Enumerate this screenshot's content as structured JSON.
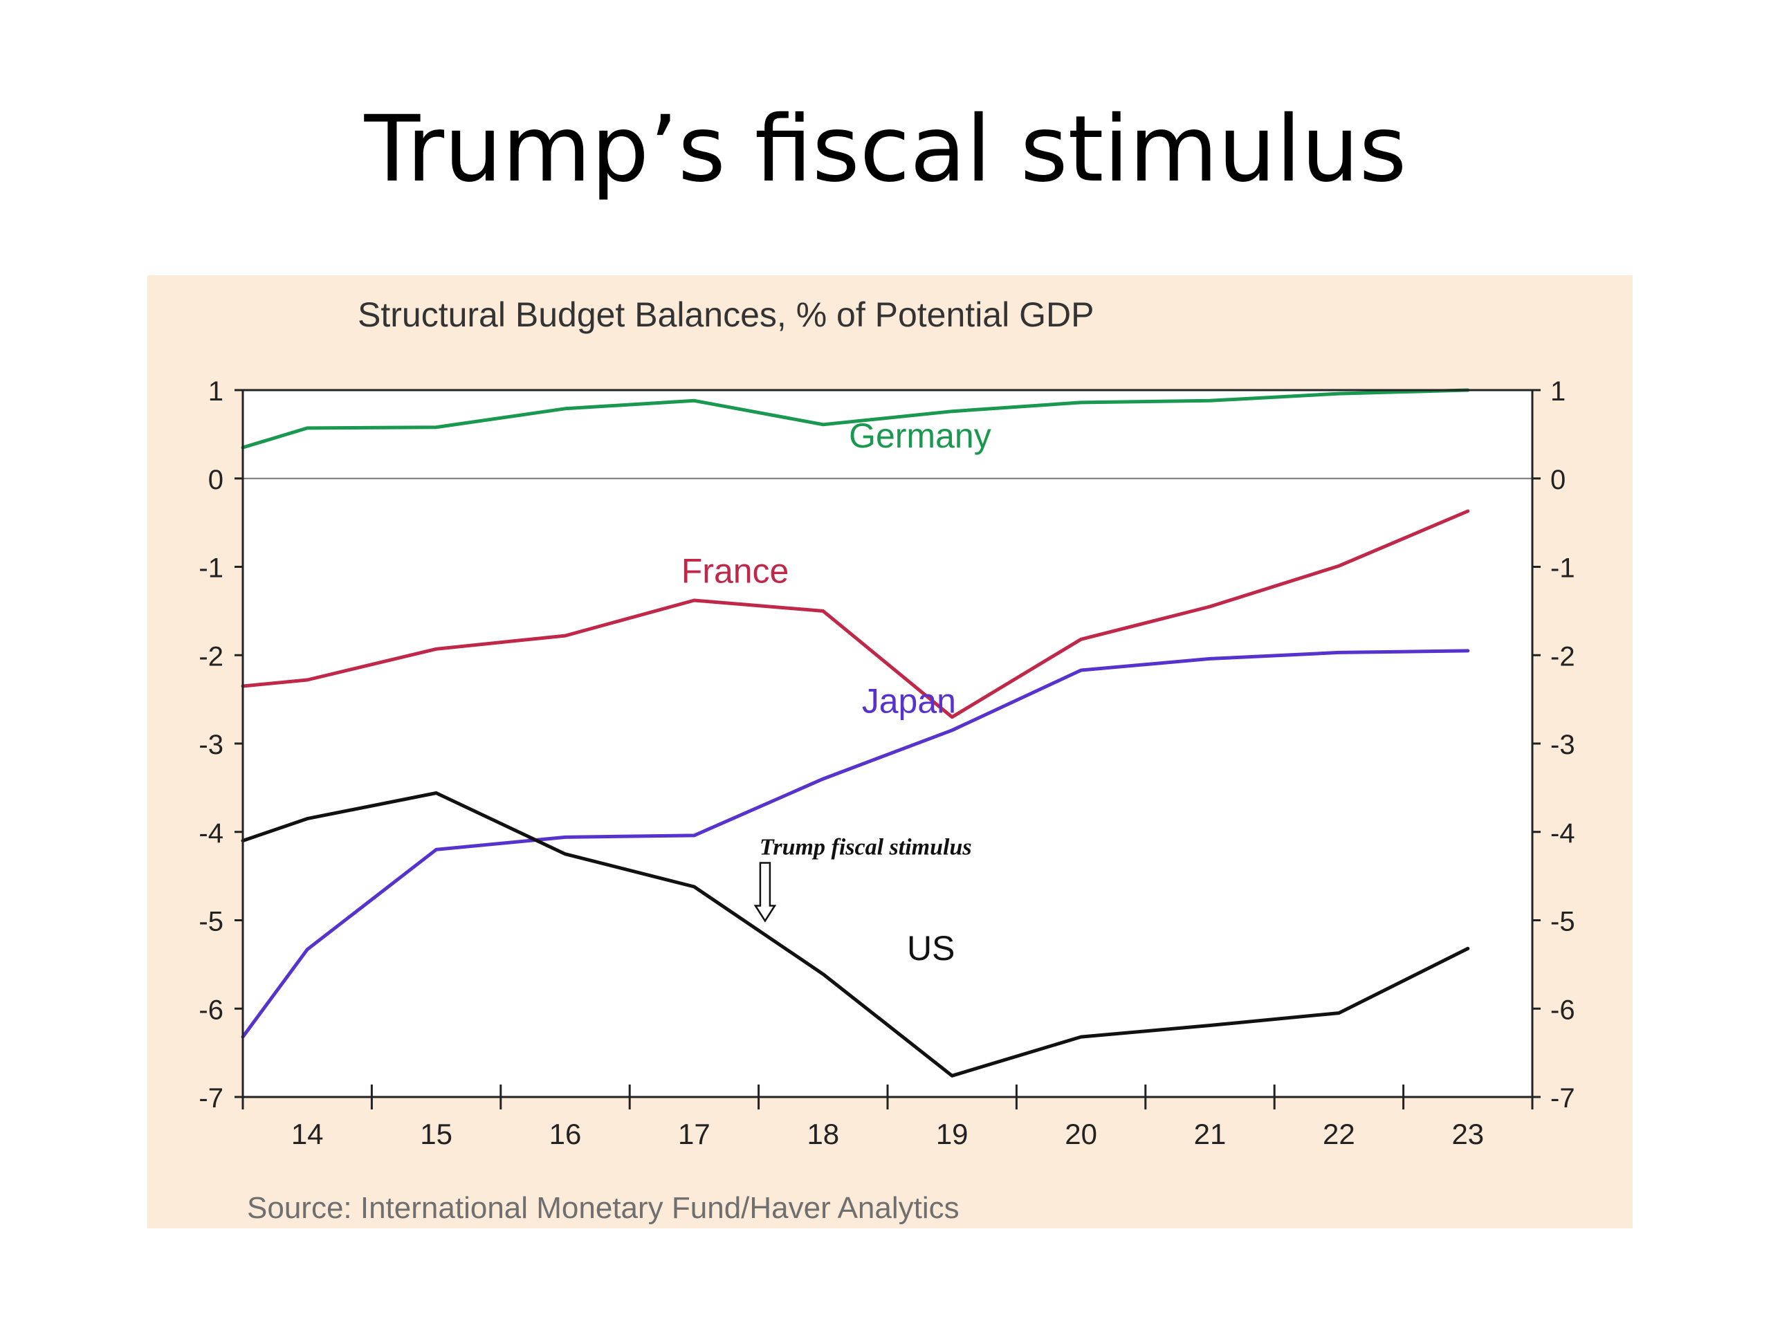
{
  "slide": {
    "title": "Trump’s fiscal stimulus"
  },
  "chart_data": {
    "type": "line",
    "title": "Structural Budget Balances, % of Potential GDP",
    "source": "Source:  International Monetary Fund/Haver Analytics",
    "x": [
      "14",
      "15",
      "16",
      "17",
      "18",
      "19",
      "20",
      "21",
      "22",
      "23"
    ],
    "x_first_value": 13.5,
    "xlim": [
      13.5,
      23.5
    ],
    "ylim": [
      -7,
      1
    ],
    "yticks": [
      1,
      0,
      -1,
      -2,
      -3,
      -4,
      -5,
      -6,
      -7
    ],
    "ytick_labels": [
      "1",
      "0",
      "-1",
      "-2",
      "-3",
      "-4",
      "-5",
      "-6",
      "-7"
    ],
    "right_axis": true,
    "grid": false,
    "zero_line": true,
    "series": [
      {
        "name": "Germany",
        "color": "#1a9850",
        "x": [
          13.5,
          14,
          15,
          16,
          17,
          18,
          19,
          20,
          21,
          22,
          23
        ],
        "values": [
          0.35,
          0.57,
          0.58,
          0.79,
          0.88,
          0.61,
          0.76,
          0.86,
          0.88,
          0.96,
          1.0
        ]
      },
      {
        "name": "France",
        "color": "#c0284a",
        "x": [
          13.5,
          14,
          15,
          16,
          17,
          18,
          19,
          20,
          21,
          22,
          23
        ],
        "values": [
          -2.35,
          -2.28,
          -1.93,
          -1.78,
          -1.38,
          -1.5,
          -2.7,
          -1.82,
          -1.45,
          -0.99,
          -0.37
        ]
      },
      {
        "name": "Japan",
        "color": "#5533cc",
        "x": [
          13.5,
          14,
          15,
          16,
          17,
          18,
          19,
          20,
          21,
          22,
          23
        ],
        "values": [
          -6.32,
          -5.33,
          -4.2,
          -4.06,
          -4.04,
          -3.4,
          -2.85,
          -2.17,
          -2.04,
          -1.97,
          -1.95
        ]
      },
      {
        "name": "US",
        "color": "#111111",
        "x": [
          13.5,
          14,
          15,
          16,
          17,
          18,
          19,
          20,
          21,
          22,
          23
        ],
        "values": [
          -4.1,
          -3.85,
          -3.56,
          -4.25,
          -4.62,
          -5.61,
          -6.76,
          -6.32,
          -6.19,
          -6.05,
          -5.32
        ]
      }
    ],
    "annotations": [
      {
        "text": "Trump fiscal stimulus",
        "arrow_x": 17.55
      }
    ],
    "colors": {
      "panel_background": "#fcebd8",
      "plot_background": "#ffffff",
      "axis": "#222222",
      "tick_label": "#222222",
      "title": "#333333",
      "source": "#6f6f6f"
    }
  }
}
